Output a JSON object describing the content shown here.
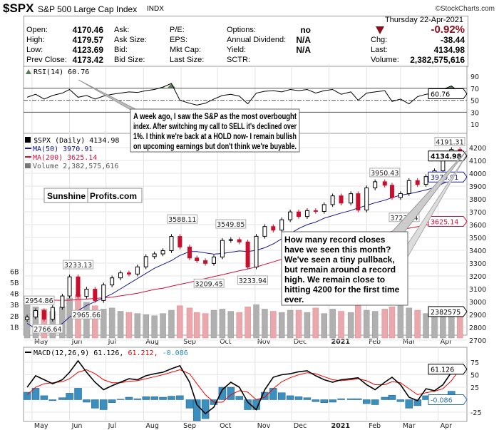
{
  "header": {
    "symbol": "$SPX",
    "name": "S&P 500 Large Cap Index",
    "exchange": "INDX",
    "copyright": "©StockCharts.com",
    "date": "Thursday  22-Apr-2021",
    "rows": [
      {
        "l1": "Open:",
        "v1": "4170.46",
        "l2": "Ask:",
        "l3": "P/E:",
        "l4": "Options:",
        "v4": "no",
        "l5": "",
        "v5": "-0.92%"
      },
      {
        "l1": "High:",
        "v1": "4179.57",
        "l2": "Ask Size:",
        "l3": "EPS:",
        "l4": "Annual Dividend:",
        "v4": "N/A",
        "l5": "Chg:",
        "v5": "-38.44"
      },
      {
        "l1": "Low:",
        "v1": "4123.69",
        "l2": "Bid:",
        "l3": "Mkt Cap:",
        "l4": "Yield:",
        "v4": "N/A",
        "l5": "Last:",
        "v5": "4134.98"
      },
      {
        "l1": "Prev Close:",
        "v1": "4173.42",
        "l2": "Bid Size:",
        "l3": "Last Size:",
        "l4": "SCTR:",
        "v4": "",
        "l5": "Volume:",
        "v5": "2,382,575,616"
      }
    ],
    "down_color": "#8b0f1a"
  },
  "legend": {
    "rsi": "RSI(14) 60.76",
    "price": "$SPX (Daily) 4134.98",
    "ma50": "MA(50) 3970.91",
    "ma200": "MA(200) 3625.14",
    "volume": "Volume 2,382,575,616",
    "macd_a": "MACD(12,26,9) 61.126, ",
    "macd_b": "61.212, ",
    "macd_c": "-0.086"
  },
  "logo": {
    "a": "Sunshine",
    "b": "Profits.com"
  },
  "callouts": [
    {
      "lines": [
        "A week ago, I saw the S&P as the most overbought",
        "index. After switching my call to SELL it's declined over",
        "1%. I think we're back at a HOLD now- I remain bullish",
        "on upcoming earnings but don't think we're buyable."
      ]
    },
    {
      "lines": [
        "How many record closes",
        "have we seen this month?",
        "We've seen a tiny pullback,",
        "but remain around a record",
        "high. We remain close to",
        "hitting 4200 for the first time",
        "ever."
      ]
    }
  ],
  "colors": {
    "ma50": "#1a1a8c",
    "ma200": "#d0103a",
    "down": "#c8102e",
    "volume_up": "#b0b0b0",
    "volume_down": "#e8a8ae",
    "macd_hist": "#3a8fbf",
    "rsi_fill": "#5a7a5a"
  },
  "chart_data": [
    {
      "type": "candlestick",
      "title": "$SPX (Daily)",
      "ylim": [
        2650,
        4300
      ],
      "yticks": [
        2700,
        2800,
        2900,
        3000,
        3100,
        3200,
        3300,
        3400,
        3500,
        3600,
        3700,
        3800,
        3900,
        4000,
        4100,
        4200
      ],
      "xticks": [
        "May",
        "Jun",
        "Jul",
        "Aug",
        "Sep",
        "Oct",
        "Nov",
        "Dec",
        "2021",
        "Feb",
        "Mar",
        "Apr"
      ],
      "xtick_dates": [
        "2020-05-01",
        "2020-06-01",
        "2020-07-01",
        "2020-08-01",
        "2020-09-01",
        "2020-10-01",
        "2020-11-01",
        "2020-12-01",
        "2021-01-01",
        "2021-02-01",
        "2021-03-01",
        "2021-04-01"
      ],
      "dates": [
        "2020-04-27",
        "2020-05-04",
        "2020-05-11",
        "2020-05-18",
        "2020-05-26",
        "2020-06-01",
        "2020-06-08",
        "2020-06-15",
        "2020-06-22",
        "2020-06-29",
        "2020-07-06",
        "2020-07-13",
        "2020-07-20",
        "2020-07-27",
        "2020-08-03",
        "2020-08-10",
        "2020-08-17",
        "2020-08-24",
        "2020-08-31",
        "2020-09-08",
        "2020-09-14",
        "2020-09-21",
        "2020-09-28",
        "2020-10-05",
        "2020-10-12",
        "2020-10-19",
        "2020-10-26",
        "2020-11-02",
        "2020-11-09",
        "2020-11-16",
        "2020-11-23",
        "2020-11-30",
        "2020-12-07",
        "2020-12-14",
        "2020-12-21",
        "2020-12-28",
        "2021-01-04",
        "2021-01-11",
        "2021-01-19",
        "2021-01-25",
        "2021-02-01",
        "2021-02-08",
        "2021-02-16",
        "2021-02-22",
        "2021-03-01",
        "2021-03-08",
        "2021-03-15",
        "2021-03-22",
        "2021-03-29",
        "2021-04-05",
        "2021-04-12",
        "2021-04-19"
      ],
      "close": [
        2880,
        2930,
        2863,
        2955,
        3044,
        3193,
        3041,
        3097,
        3009,
        3130,
        3185,
        3224,
        3215,
        3271,
        3351,
        3372,
        3397,
        3508,
        3426,
        3340,
        3319,
        3298,
        3348,
        3477,
        3483,
        3465,
        3270,
        3509,
        3585,
        3557,
        3638,
        3699,
        3663,
        3709,
        3703,
        3756,
        3824,
        3768,
        3841,
        3714,
        3886,
        3934,
        3907,
        3811,
        3842,
        3943,
        3913,
        3974,
        4019,
        4128,
        4185,
        4135
      ],
      "ma50": [
        2830,
        2790,
        2770,
        2790,
        2830,
        2880,
        2930,
        2970,
        3000,
        3030,
        3060,
        3100,
        3140,
        3180,
        3220,
        3260,
        3290,
        3320,
        3360,
        3390,
        3390,
        3380,
        3370,
        3375,
        3385,
        3395,
        3390,
        3400,
        3420,
        3450,
        3490,
        3530,
        3570,
        3600,
        3620,
        3650,
        3670,
        3690,
        3710,
        3730,
        3750,
        3770,
        3790,
        3810,
        3830,
        3840,
        3855,
        3870,
        3890,
        3920,
        3950,
        3970.91
      ],
      "ma200": [
        3030,
        3020,
        3015,
        3012,
        3010,
        3012,
        3015,
        3020,
        3025,
        3030,
        3035,
        3045,
        3055,
        3065,
        3080,
        3095,
        3105,
        3120,
        3135,
        3150,
        3165,
        3180,
        3195,
        3210,
        3225,
        3240,
        3255,
        3270,
        3290,
        3310,
        3330,
        3350,
        3370,
        3390,
        3410,
        3430,
        3445,
        3460,
        3475,
        3490,
        3505,
        3520,
        3535,
        3548,
        3560,
        3572,
        3584,
        3596,
        3606,
        3614,
        3620,
        3625.14
      ],
      "annotations": [
        {
          "date": "2020-04-29",
          "value": "2954.86",
          "pos": "above"
        },
        {
          "date": "2020-05-14",
          "value": "2766.64",
          "pos": "below"
        },
        {
          "date": "2020-06-08",
          "value": "3233.13",
          "pos": "above"
        },
        {
          "date": "2020-06-15",
          "value": "2965.66",
          "pos": "below"
        },
        {
          "date": "2020-09-02",
          "value": "3588.11",
          "pos": "above"
        },
        {
          "date": "2020-09-24",
          "value": "3209.45",
          "pos": "below"
        },
        {
          "date": "2020-10-12",
          "value": "3549.85",
          "pos": "above"
        },
        {
          "date": "2020-10-30",
          "value": "3233.94",
          "pos": "below"
        },
        {
          "date": "2021-02-16",
          "value": "3950.43",
          "pos": "above"
        },
        {
          "date": "2021-03-04",
          "value": "3723.34",
          "pos": "below"
        },
        {
          "date": "2021-04-16",
          "value": "4191.31",
          "pos": "above"
        }
      ],
      "last_tags": {
        "close": "4134.98",
        "ma50": "3970.91",
        "ma200": "3625.14",
        "volume": "2382575"
      }
    },
    {
      "type": "bar",
      "title": "Volume",
      "yticks": [
        "1B",
        "2B",
        "3B",
        "4B",
        "5B",
        "6B"
      ],
      "values_billions": [
        3.0,
        2.8,
        2.6,
        2.4,
        2.8,
        3.6,
        3.9,
        3.2,
        2.9,
        2.6,
        2.7,
        2.4,
        2.3,
        2.2,
        2.1,
        2.0,
        2.2,
        2.5,
        2.9,
        2.7,
        2.3,
        2.2,
        2.5,
        2.6,
        2.4,
        2.3,
        2.8,
        3.0,
        2.6,
        2.4,
        2.3,
        2.5,
        2.5,
        2.3,
        2.7,
        2.2,
        2.6,
        2.4,
        2.3,
        2.9,
        2.5,
        2.4,
        2.6,
        2.8,
        3.0,
        2.7,
        2.5,
        2.2,
        2.1,
        2.2,
        2.3,
        2.38
      ]
    },
    {
      "type": "line",
      "title": "RSI(14)",
      "ylim": [
        0,
        100
      ],
      "yticks": [
        90,
        70,
        50,
        30,
        10
      ],
      "last": "60.76",
      "values": [
        55,
        60,
        52,
        58,
        62,
        68,
        55,
        58,
        52,
        57,
        60,
        62,
        64,
        63,
        66,
        68,
        72,
        78,
        50,
        45,
        42,
        45,
        52,
        58,
        60,
        57,
        44,
        62,
        65,
        66,
        64,
        68,
        66,
        68,
        62,
        66,
        68,
        60,
        64,
        50,
        62,
        64,
        66,
        48,
        52,
        44,
        56,
        60,
        62,
        68,
        74,
        60.76
      ]
    },
    {
      "type": "line",
      "title": "MACD(12,26,9)",
      "ylim": [
        -35,
        95
      ],
      "yticks": [
        75,
        50,
        25,
        -25
      ],
      "last_macd": "61.126",
      "last_hist": "-0.086",
      "macd": [
        25,
        48,
        40,
        32,
        40,
        55,
        78,
        55,
        35,
        20,
        28,
        35,
        42,
        40,
        48,
        52,
        55,
        62,
        68,
        35,
        -10,
        -28,
        -15,
        20,
        35,
        25,
        -5,
        -20,
        20,
        45,
        50,
        52,
        56,
        58,
        48,
        40,
        35,
        40,
        42,
        44,
        30,
        20,
        35,
        45,
        30,
        5,
        -2,
        22,
        18,
        30,
        55,
        61.126
      ],
      "signal": [
        10,
        25,
        32,
        34,
        36,
        42,
        55,
        60,
        52,
        40,
        34,
        34,
        37,
        38,
        42,
        46,
        50,
        55,
        60,
        52,
        32,
        10,
        -5,
        -5,
        10,
        18,
        15,
        0,
        5,
        22,
        36,
        44,
        50,
        54,
        52,
        46,
        40,
        38,
        40,
        42,
        38,
        30,
        30,
        36,
        34,
        22,
        10,
        14,
        17,
        22,
        38,
        61.212
      ]
    }
  ]
}
